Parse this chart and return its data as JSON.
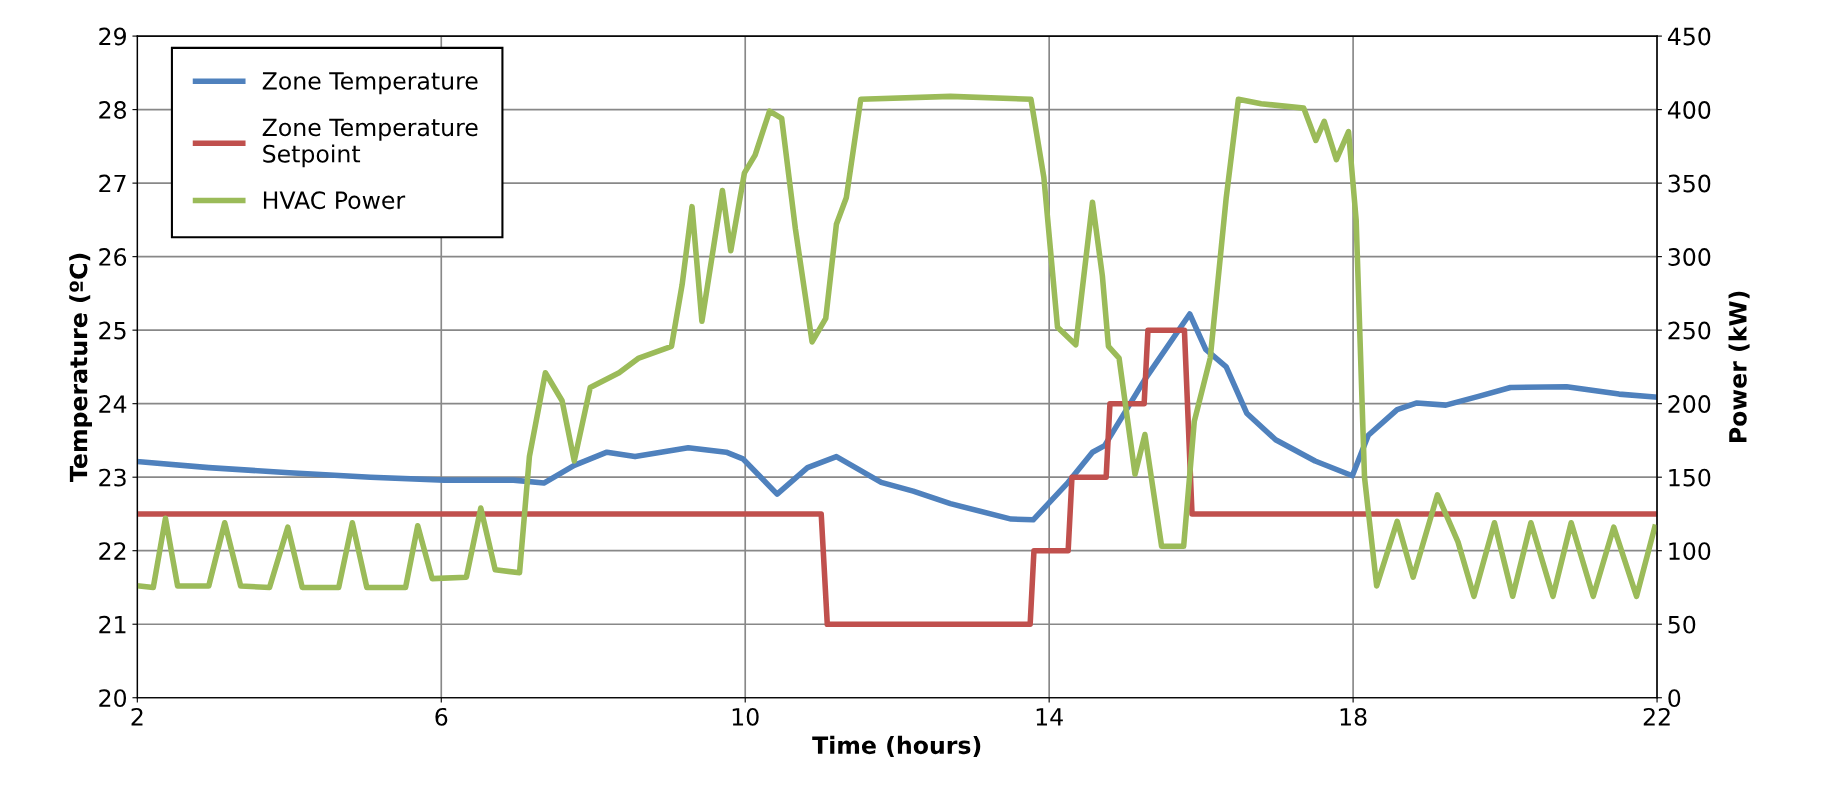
{
  "chart_data": {
    "type": "line",
    "xlabel": "Time (hours)",
    "ylabel": "Temperature (ºC)",
    "y2label": "Power (kW)",
    "xlim": [
      2,
      22
    ],
    "xticks": [
      2,
      6,
      10,
      14,
      18,
      22
    ],
    "ylim": [
      20,
      29
    ],
    "yticks": [
      20,
      21,
      22,
      23,
      24,
      25,
      26,
      27,
      28,
      29
    ],
    "y2lim": [
      0,
      450
    ],
    "y2ticks": [
      0,
      50,
      100,
      150,
      200,
      250,
      300,
      350,
      400,
      450
    ],
    "grid": true,
    "legend": "top left",
    "marker": "none",
    "line_style": "solid",
    "series": [
      {
        "name": "Zone Temperature",
        "color": "#4f81bd",
        "x": [
          2.03,
          2.94,
          4.0,
          5.07,
          6.04,
          6.95,
          7.35,
          7.75,
          8.18,
          8.55,
          9.25,
          9.75,
          9.97,
          10.42,
          10.82,
          11.2,
          11.79,
          12.21,
          12.7,
          13.5,
          13.79,
          14.25,
          14.57,
          14.73,
          15.26,
          15.85,
          16.06,
          16.33,
          16.6,
          16.98,
          17.5,
          17.99,
          18.2,
          18.58,
          18.84,
          19.22,
          19.65,
          20.07,
          20.81,
          21.5,
          21.99
        ],
        "values": [
          23.21,
          23.13,
          23.06,
          23.0,
          22.96,
          22.96,
          22.92,
          23.16,
          23.34,
          23.28,
          23.4,
          23.34,
          23.25,
          22.77,
          23.13,
          23.28,
          22.93,
          22.81,
          22.64,
          22.43,
          22.42,
          22.93,
          23.34,
          23.43,
          24.33,
          25.22,
          24.74,
          24.5,
          23.87,
          23.51,
          23.22,
          23.02,
          23.57,
          23.92,
          24.01,
          23.98,
          24.1,
          24.22,
          24.23,
          24.13,
          24.09
        ]
      },
      {
        "name": "Zone Temperature\nSetpoint",
        "color": "#c0504d",
        "x": [
          2.03,
          11.0,
          11.08,
          13.75,
          13.8,
          14.25,
          14.3,
          14.75,
          14.8,
          15.25,
          15.3,
          15.78,
          15.88,
          21.99
        ],
        "values": [
          22.5,
          22.5,
          21,
          21,
          22,
          22,
          23,
          23,
          24,
          24,
          25,
          25,
          22.5,
          22.5
        ]
      },
      {
        "name": "HVAC Power",
        "color": "#9bbb59",
        "axis": "y2",
        "x": [
          2.03,
          2.21,
          2.37,
          2.53,
          2.94,
          3.15,
          3.36,
          3.74,
          3.98,
          4.17,
          4.65,
          4.83,
          5.02,
          5.53,
          5.69,
          5.88,
          6.33,
          6.52,
          6.71,
          7.03,
          7.16,
          7.37,
          7.59,
          7.75,
          7.96,
          8.34,
          8.6,
          9.03,
          9.17,
          9.3,
          9.43,
          9.7,
          9.81,
          9.99,
          10.13,
          10.32,
          10.48,
          10.66,
          10.88,
          11.06,
          11.2,
          11.33,
          11.52,
          12.7,
          13.76,
          13.93,
          14.11,
          14.35,
          14.57,
          14.7,
          14.78,
          14.92,
          15.13,
          15.26,
          15.48,
          15.77,
          15.91,
          16.12,
          16.33,
          16.49,
          16.79,
          17.35,
          17.51,
          17.62,
          17.78,
          17.94,
          18.04,
          18.15,
          18.31,
          18.58,
          18.79,
          19.11,
          19.38,
          19.59,
          19.86,
          20.1,
          20.34,
          20.63,
          20.87,
          21.16,
          21.43,
          21.73,
          21.97
        ],
        "values": [
          76,
          75,
          122,
          76,
          76,
          119,
          76,
          75,
          116,
          75,
          75,
          119,
          75,
          75,
          117,
          81,
          82,
          129,
          87,
          85,
          164,
          221,
          202,
          161,
          211,
          221,
          231,
          239,
          281,
          334,
          256,
          345,
          304,
          357,
          369,
          399,
          394,
          319,
          242,
          258,
          322,
          340,
          407,
          409,
          407,
          354,
          252,
          240,
          337,
          287,
          239,
          231,
          152,
          179,
          103,
          103,
          188,
          231,
          340,
          407,
          404,
          401,
          379,
          392,
          366,
          385,
          325,
          150,
          76,
          120,
          82,
          138,
          106,
          69,
          119,
          69,
          119,
          69,
          119,
          69,
          116,
          69,
          116
        ]
      }
    ]
  }
}
